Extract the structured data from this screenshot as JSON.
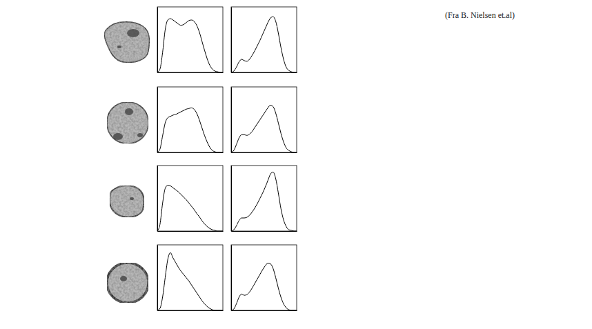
{
  "source": "(Fra B. Nielsen et.al)",
  "chart_data": [
    {
      "type": "line",
      "color": "#000000",
      "tick_labels": false,
      "xlim": [
        0,
        250
      ],
      "ylim": [
        0,
        1
      ],
      "x": [
        0,
        10,
        20,
        30,
        40,
        50,
        60,
        70,
        80,
        90,
        100,
        110,
        120,
        130,
        140,
        150,
        160,
        170,
        180,
        190,
        200,
        210,
        220,
        230,
        240,
        250
      ],
      "values": [
        0,
        0.05,
        0.3,
        0.65,
        0.8,
        0.82,
        0.8,
        0.77,
        0.74,
        0.72,
        0.73,
        0.76,
        0.79,
        0.8,
        0.78,
        0.72,
        0.62,
        0.48,
        0.34,
        0.21,
        0.11,
        0.05,
        0.02,
        0.01,
        0,
        0
      ]
    },
    {
      "type": "line",
      "color": "#000000",
      "tick_labels": false,
      "xlim": [
        0,
        250
      ],
      "ylim": [
        0,
        1
      ],
      "x": [
        0,
        10,
        20,
        30,
        40,
        50,
        60,
        70,
        80,
        90,
        100,
        110,
        120,
        130,
        140,
        150,
        160,
        170,
        180,
        190,
        200,
        210,
        220,
        230,
        240,
        250
      ],
      "values": [
        0,
        0.02,
        0.08,
        0.16,
        0.2,
        0.18,
        0.17,
        0.2,
        0.26,
        0.33,
        0.41,
        0.49,
        0.58,
        0.67,
        0.76,
        0.83,
        0.85,
        0.78,
        0.6,
        0.38,
        0.2,
        0.08,
        0.03,
        0.01,
        0,
        0
      ]
    },
    {
      "type": "line",
      "color": "#000000",
      "tick_labels": false,
      "xlim": [
        0,
        250
      ],
      "ylim": [
        0,
        1
      ],
      "x": [
        0,
        10,
        20,
        30,
        40,
        50,
        60,
        70,
        80,
        90,
        100,
        110,
        120,
        130,
        140,
        150,
        160,
        170,
        180,
        190,
        200,
        210,
        220,
        230,
        240,
        250
      ],
      "values": [
        0,
        0.05,
        0.25,
        0.45,
        0.53,
        0.55,
        0.57,
        0.58,
        0.6,
        0.62,
        0.64,
        0.66,
        0.67,
        0.68,
        0.66,
        0.6,
        0.5,
        0.38,
        0.26,
        0.16,
        0.08,
        0.03,
        0.01,
        0,
        0,
        0
      ]
    },
    {
      "type": "line",
      "color": "#000000",
      "tick_labels": false,
      "xlim": [
        0,
        250
      ],
      "ylim": [
        0,
        1
      ],
      "x": [
        0,
        10,
        20,
        30,
        40,
        50,
        60,
        70,
        80,
        90,
        100,
        110,
        120,
        130,
        140,
        150,
        160,
        170,
        180,
        190,
        200,
        210,
        220,
        230,
        240,
        250
      ],
      "values": [
        0,
        0.03,
        0.12,
        0.22,
        0.27,
        0.27,
        0.26,
        0.28,
        0.32,
        0.38,
        0.44,
        0.5,
        0.56,
        0.62,
        0.68,
        0.72,
        0.7,
        0.6,
        0.45,
        0.29,
        0.16,
        0.07,
        0.03,
        0.01,
        0,
        0
      ]
    },
    {
      "type": "line",
      "color": "#000000",
      "tick_labels": false,
      "xlim": [
        0,
        250
      ],
      "ylim": [
        0,
        1
      ],
      "x": [
        0,
        10,
        20,
        30,
        40,
        50,
        60,
        70,
        80,
        90,
        100,
        110,
        120,
        130,
        140,
        150,
        160,
        170,
        180,
        190,
        200,
        210,
        220,
        230,
        240,
        250
      ],
      "values": [
        0,
        0.1,
        0.42,
        0.65,
        0.7,
        0.69,
        0.66,
        0.63,
        0.6,
        0.56,
        0.52,
        0.48,
        0.43,
        0.38,
        0.33,
        0.27,
        0.22,
        0.16,
        0.11,
        0.07,
        0.04,
        0.02,
        0.01,
        0,
        0,
        0
      ]
    },
    {
      "type": "line",
      "color": "#000000",
      "tick_labels": false,
      "xlim": [
        0,
        250
      ],
      "ylim": [
        0,
        1
      ],
      "x": [
        0,
        10,
        20,
        30,
        40,
        50,
        60,
        70,
        80,
        90,
        100,
        110,
        120,
        130,
        140,
        150,
        160,
        170,
        180,
        190,
        200,
        210,
        220,
        230,
        240,
        250
      ],
      "values": [
        0,
        0.02,
        0.08,
        0.16,
        0.2,
        0.2,
        0.21,
        0.24,
        0.29,
        0.35,
        0.42,
        0.5,
        0.58,
        0.67,
        0.77,
        0.87,
        0.9,
        0.8,
        0.58,
        0.34,
        0.17,
        0.07,
        0.02,
        0.01,
        0,
        0
      ]
    },
    {
      "type": "line",
      "color": "#000000",
      "tick_labels": false,
      "xlim": [
        0,
        250
      ],
      "ylim": [
        0,
        1
      ],
      "x": [
        0,
        10,
        20,
        30,
        40,
        50,
        60,
        70,
        80,
        90,
        100,
        110,
        120,
        130,
        140,
        150,
        160,
        170,
        180,
        190,
        200,
        210,
        220,
        230,
        240,
        250
      ],
      "values": [
        0,
        0.03,
        0.2,
        0.5,
        0.78,
        0.88,
        0.8,
        0.73,
        0.66,
        0.6,
        0.55,
        0.5,
        0.45,
        0.39,
        0.33,
        0.27,
        0.21,
        0.15,
        0.1,
        0.06,
        0.03,
        0.01,
        0,
        0,
        0,
        0
      ]
    },
    {
      "type": "line",
      "color": "#000000",
      "tick_labels": false,
      "xlim": [
        0,
        250
      ],
      "ylim": [
        0,
        1
      ],
      "x": [
        0,
        10,
        20,
        30,
        40,
        50,
        60,
        70,
        80,
        90,
        100,
        110,
        120,
        130,
        140,
        150,
        160,
        170,
        180,
        190,
        200,
        210,
        220,
        230,
        240,
        250
      ],
      "values": [
        0,
        0.02,
        0.1,
        0.2,
        0.25,
        0.23,
        0.24,
        0.28,
        0.34,
        0.41,
        0.48,
        0.55,
        0.62,
        0.68,
        0.72,
        0.71,
        0.64,
        0.5,
        0.34,
        0.2,
        0.1,
        0.04,
        0.01,
        0,
        0,
        0
      ]
    }
  ]
}
